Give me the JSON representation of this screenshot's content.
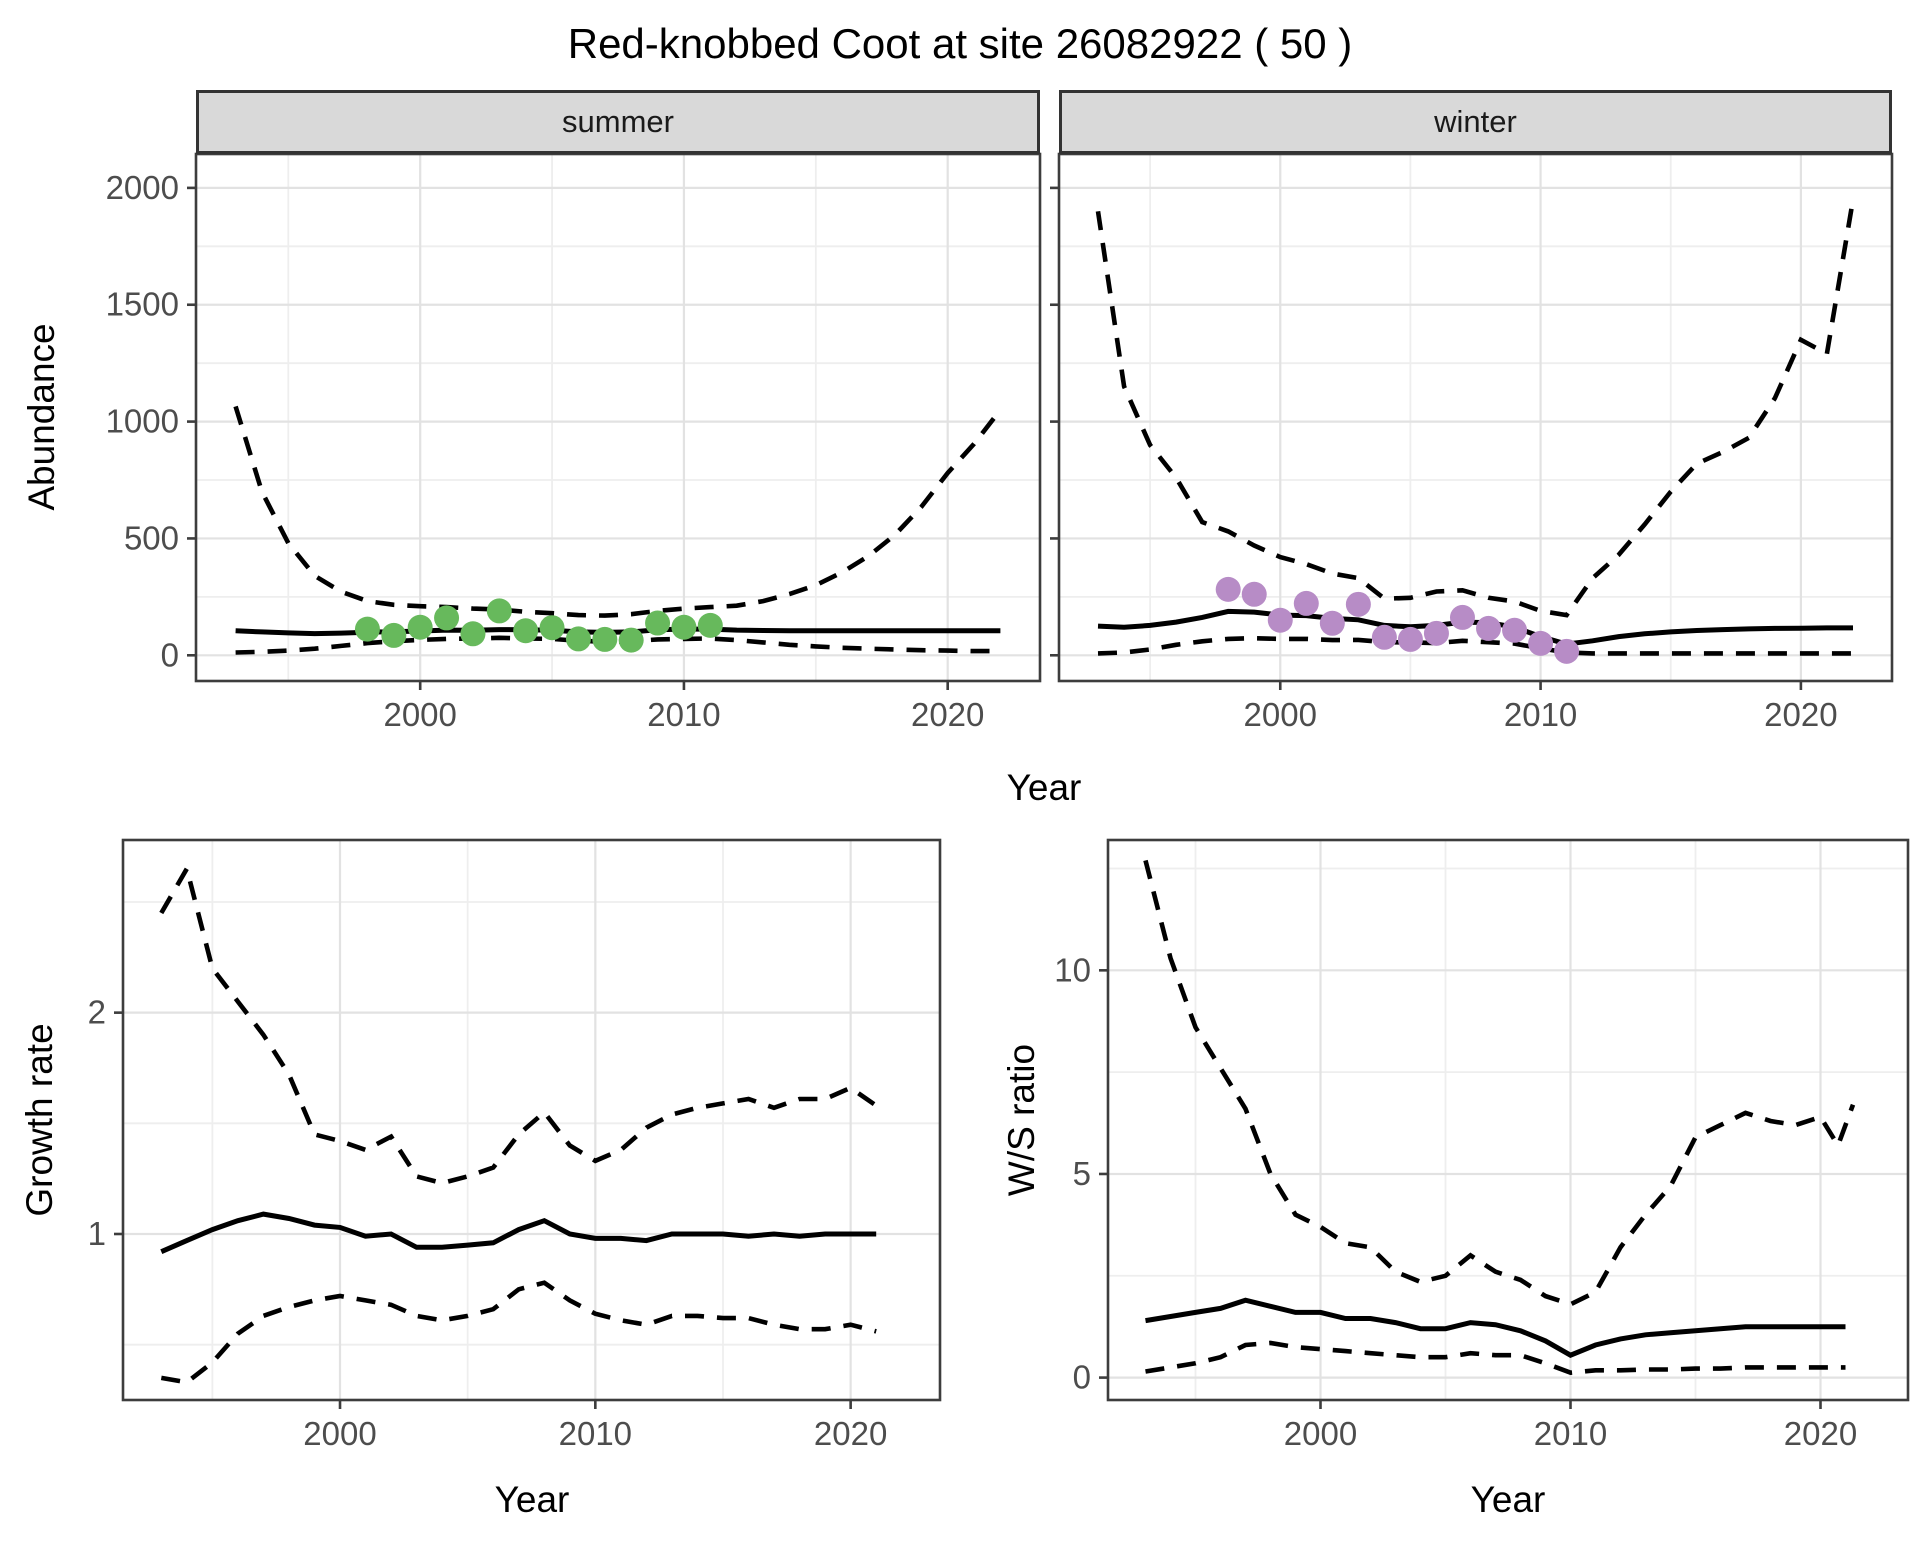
{
  "title": "Red-knobbed Coot at site 26082922 ( 50 )",
  "facets": {
    "summer": "summer",
    "winter": "winter"
  },
  "axes": {
    "abundance": "Abundance",
    "year_top": "Year",
    "growth_rate": "Growth rate",
    "ws_ratio": "W/S ratio",
    "year_growth": "Year",
    "year_ws": "Year"
  },
  "colors": {
    "summer_points": "#67b95c",
    "winter_points": "#b78cc6",
    "line": "#000000",
    "strip_bg": "#d9d9d9",
    "grid_major": "#e2e2e2",
    "grid_minor": "#eeeeee",
    "tick_label": "#4d4d4d",
    "panel_border": "#3d3d3d"
  },
  "chart_data": [
    {
      "id": "abundance-summer",
      "type": "line",
      "facet": "summer",
      "xlabel": "Year",
      "ylabel": "Abundance",
      "xlim": [
        1991.5,
        2023.5
      ],
      "ylim": [
        -110,
        2145
      ],
      "x_ticks": [
        2000,
        2010,
        2020
      ],
      "x_minor": [
        1995,
        2005,
        2015
      ],
      "y_ticks": [
        0,
        500,
        1000,
        1500,
        2000
      ],
      "y_minor": [
        250,
        750,
        1250,
        1750
      ],
      "show_y_labels": true,
      "series": [
        {
          "name": "upper_ci",
          "style": "dashed",
          "x": [
            1993,
            1994,
            1995,
            1996,
            1997,
            1998,
            1999,
            2000,
            2001,
            2002,
            2003,
            2004,
            2005,
            2006,
            2007,
            2008,
            2009,
            2010,
            2011,
            2012,
            2013,
            2014,
            2015,
            2016,
            2017,
            2018,
            2019,
            2020,
            2021,
            2022
          ],
          "y": [
            1065,
            700,
            480,
            340,
            272,
            232,
            216,
            210,
            206,
            200,
            196,
            186,
            180,
            172,
            170,
            176,
            190,
            200,
            206,
            212,
            232,
            262,
            300,
            355,
            425,
            515,
            635,
            780,
            905,
            1050
          ]
        },
        {
          "name": "lower_ci",
          "style": "dashed",
          "x": [
            1993,
            1994,
            1995,
            1996,
            1997,
            1998,
            1999,
            2000,
            2001,
            2002,
            2003,
            2004,
            2005,
            2006,
            2007,
            2008,
            2009,
            2010,
            2011,
            2012,
            2013,
            2014,
            2015,
            2016,
            2017,
            2018,
            2019,
            2020,
            2021,
            2022
          ],
          "y": [
            12,
            15,
            20,
            28,
            40,
            52,
            60,
            66,
            70,
            72,
            75,
            72,
            70,
            62,
            58,
            60,
            68,
            70,
            72,
            65,
            55,
            45,
            38,
            32,
            28,
            25,
            22,
            20,
            18,
            18
          ]
        },
        {
          "name": "median",
          "style": "solid",
          "x": [
            1993,
            1994,
            1995,
            1996,
            1997,
            1998,
            1999,
            2000,
            2001,
            2002,
            2003,
            2004,
            2005,
            2006,
            2007,
            2008,
            2009,
            2010,
            2011,
            2012,
            2013,
            2014,
            2015,
            2016,
            2017,
            2018,
            2019,
            2020,
            2021,
            2022
          ],
          "y": [
            105,
            100,
            96,
            93,
            95,
            99,
            101,
            104,
            108,
            107,
            110,
            109,
            107,
            100,
            98,
            100,
            109,
            112,
            112,
            108,
            106,
            105,
            105,
            105,
            105,
            105,
            105,
            105,
            105,
            105
          ]
        },
        {
          "name": "observed_counts",
          "style": "points",
          "color_key": "summer_points",
          "x": [
            1998,
            1999,
            2000,
            2001,
            2002,
            2003,
            2004,
            2005,
            2006,
            2007,
            2008,
            2009,
            2010,
            2011
          ],
          "y": [
            112,
            85,
            120,
            160,
            92,
            190,
            105,
            118,
            70,
            68,
            65,
            138,
            120,
            128
          ]
        }
      ]
    },
    {
      "id": "abundance-winter",
      "type": "line",
      "facet": "winter",
      "xlabel": "Year",
      "ylabel": "Abundance",
      "xlim": [
        1991.5,
        2023.5
      ],
      "ylim": [
        -110,
        2145
      ],
      "x_ticks": [
        2000,
        2010,
        2020
      ],
      "x_minor": [
        1995,
        2005,
        2015
      ],
      "y_ticks": [
        0,
        500,
        1000,
        1500,
        2000
      ],
      "y_minor": [
        250,
        750,
        1250,
        1750
      ],
      "show_y_labels": false,
      "series": [
        {
          "name": "upper_ci",
          "style": "dashed",
          "x": [
            1993,
            1994,
            1995,
            1996,
            1997,
            1998,
            1999,
            2000,
            2001,
            2002,
            2003,
            2004,
            2005,
            2006,
            2007,
            2008,
            2009,
            2010,
            2011,
            2012,
            2013,
            2014,
            2015,
            2016,
            2017,
            2018,
            2019,
            2020,
            2021,
            2022
          ],
          "y": [
            1900,
            1150,
            900,
            760,
            570,
            530,
            470,
            420,
            390,
            350,
            330,
            242,
            246,
            273,
            278,
            246,
            230,
            190,
            172,
            330,
            430,
            560,
            700,
            820,
            870,
            930,
            1100,
            1350,
            1290,
            1950
          ]
        },
        {
          "name": "lower_ci",
          "style": "dashed",
          "x": [
            1993,
            1994,
            1995,
            1996,
            1997,
            1998,
            1999,
            2000,
            2001,
            2002,
            2003,
            2004,
            2005,
            2006,
            2007,
            2008,
            2009,
            2010,
            2011,
            2012,
            2013,
            2014,
            2015,
            2016,
            2017,
            2018,
            2019,
            2020,
            2021,
            2022
          ],
          "y": [
            8,
            12,
            25,
            45,
            60,
            70,
            73,
            70,
            70,
            65,
            66,
            56,
            55,
            52,
            62,
            56,
            50,
            30,
            12,
            8,
            8,
            8,
            8,
            8,
            8,
            8,
            8,
            8,
            8,
            8
          ]
        },
        {
          "name": "median",
          "style": "solid",
          "x": [
            1993,
            1994,
            1995,
            1996,
            1997,
            1998,
            1999,
            2000,
            2001,
            2002,
            2003,
            2004,
            2005,
            2006,
            2007,
            2008,
            2009,
            2010,
            2011,
            2012,
            2013,
            2014,
            2015,
            2016,
            2017,
            2018,
            2019,
            2020,
            2021,
            2022
          ],
          "y": [
            125,
            120,
            128,
            142,
            162,
            188,
            185,
            172,
            170,
            158,
            152,
            128,
            122,
            128,
            142,
            140,
            120,
            80,
            48,
            62,
            80,
            92,
            100,
            106,
            110,
            113,
            115,
            116,
            117,
            117
          ]
        },
        {
          "name": "observed_counts",
          "style": "points",
          "color_key": "winter_points",
          "x": [
            1998,
            1999,
            2000,
            2001,
            2002,
            2003,
            2004,
            2005,
            2006,
            2007,
            2008,
            2009,
            2010,
            2011
          ],
          "y": [
            282,
            261,
            150,
            222,
            137,
            218,
            77,
            68,
            94,
            162,
            115,
            107,
            51,
            17
          ]
        }
      ]
    },
    {
      "id": "growth-rate",
      "type": "line",
      "facet": null,
      "xlabel": "Year",
      "ylabel": "Growth rate",
      "xlim": [
        1991.5,
        2023.5
      ],
      "ylim": [
        0.25,
        2.78
      ],
      "x_ticks": [
        2000,
        2010,
        2020
      ],
      "x_minor": [
        1995,
        2005,
        2015
      ],
      "y_ticks": [
        1,
        2
      ],
      "y_minor": [
        0.5,
        1.5,
        2.5
      ],
      "show_y_labels": true,
      "series": [
        {
          "name": "upper_ci",
          "style": "dashed",
          "x": [
            1993,
            1994,
            1995,
            1996,
            1997,
            1998,
            1999,
            2000,
            2001,
            2002,
            2003,
            2004,
            2005,
            2006,
            2007,
            2008,
            2009,
            2010,
            2011,
            2012,
            2013,
            2014,
            2015,
            2016,
            2017,
            2018,
            2019,
            2020,
            2021
          ],
          "y": [
            2.45,
            2.65,
            2.2,
            2.05,
            1.9,
            1.72,
            1.45,
            1.42,
            1.38,
            1.44,
            1.26,
            1.23,
            1.26,
            1.3,
            1.45,
            1.55,
            1.4,
            1.33,
            1.38,
            1.48,
            1.54,
            1.57,
            1.59,
            1.61,
            1.57,
            1.61,
            1.61,
            1.66,
            1.58
          ]
        },
        {
          "name": "lower_ci",
          "style": "dashed",
          "x": [
            1993,
            1994,
            1995,
            1996,
            1997,
            1998,
            1999,
            2000,
            2001,
            2002,
            2003,
            2004,
            2005,
            2006,
            2007,
            2008,
            2009,
            2010,
            2011,
            2012,
            2013,
            2014,
            2015,
            2016,
            2017,
            2018,
            2019,
            2020,
            2021
          ],
          "y": [
            0.35,
            0.33,
            0.42,
            0.55,
            0.63,
            0.67,
            0.7,
            0.72,
            0.7,
            0.68,
            0.63,
            0.61,
            0.63,
            0.66,
            0.75,
            0.78,
            0.7,
            0.64,
            0.61,
            0.59,
            0.63,
            0.63,
            0.62,
            0.62,
            0.59,
            0.57,
            0.57,
            0.59,
            0.56
          ]
        },
        {
          "name": "median",
          "style": "solid",
          "x": [
            1993,
            1994,
            1995,
            1996,
            1997,
            1998,
            1999,
            2000,
            2001,
            2002,
            2003,
            2004,
            2005,
            2006,
            2007,
            2008,
            2009,
            2010,
            2011,
            2012,
            2013,
            2014,
            2015,
            2016,
            2017,
            2018,
            2019,
            2020,
            2021
          ],
          "y": [
            0.92,
            0.97,
            1.02,
            1.06,
            1.09,
            1.07,
            1.04,
            1.03,
            0.99,
            1.0,
            0.94,
            0.94,
            0.95,
            0.96,
            1.02,
            1.06,
            1.0,
            0.98,
            0.98,
            0.97,
            1.0,
            1.0,
            1.0,
            0.99,
            1.0,
            0.99,
            1.0,
            1.0,
            1.0
          ]
        }
      ]
    },
    {
      "id": "ws-ratio",
      "type": "line",
      "facet": null,
      "xlabel": "Year",
      "ylabel": "W/S ratio",
      "xlim": [
        1991.5,
        2023.5
      ],
      "ylim": [
        -0.55,
        13.2
      ],
      "x_ticks": [
        2000,
        2010,
        2020
      ],
      "x_minor": [
        1995,
        2005,
        2015
      ],
      "y_ticks": [
        0,
        5,
        10
      ],
      "y_minor": [
        2.5,
        7.5,
        12.5
      ],
      "show_y_labels": true,
      "series": [
        {
          "name": "upper_ci",
          "style": "dashed",
          "x": [
            1993,
            1994,
            1995,
            1996,
            1997,
            1998,
            1999,
            2000,
            2001,
            2002,
            2003,
            2004,
            2005,
            2006,
            2007,
            2008,
            2009,
            2010,
            2011,
            2012,
            2013,
            2014,
            2015,
            2016,
            2017,
            2018,
            2019,
            2020,
            2020.7,
            2021.3
          ],
          "y": [
            12.7,
            10.3,
            8.6,
            7.6,
            6.6,
            5.0,
            4.0,
            3.7,
            3.3,
            3.2,
            2.6,
            2.35,
            2.5,
            3.0,
            2.6,
            2.4,
            2.0,
            1.8,
            2.1,
            3.2,
            4.0,
            4.7,
            5.9,
            6.2,
            6.5,
            6.3,
            6.2,
            6.4,
            5.7,
            6.7
          ]
        },
        {
          "name": "lower_ci",
          "style": "dashed",
          "x": [
            1993,
            1994,
            1995,
            1996,
            1997,
            1998,
            1999,
            2000,
            2001,
            2002,
            2003,
            2004,
            2005,
            2006,
            2007,
            2008,
            2009,
            2010,
            2011,
            2012,
            2013,
            2014,
            2015,
            2016,
            2017,
            2018,
            2019,
            2020,
            2021
          ],
          "y": [
            0.15,
            0.25,
            0.35,
            0.5,
            0.8,
            0.85,
            0.75,
            0.7,
            0.65,
            0.6,
            0.55,
            0.5,
            0.5,
            0.6,
            0.55,
            0.55,
            0.35,
            0.12,
            0.18,
            0.18,
            0.2,
            0.2,
            0.22,
            0.22,
            0.25,
            0.25,
            0.25,
            0.25,
            0.25
          ]
        },
        {
          "name": "median",
          "style": "solid",
          "x": [
            1993,
            1994,
            1995,
            1996,
            1997,
            1998,
            1999,
            2000,
            2001,
            2002,
            2003,
            2004,
            2005,
            2006,
            2007,
            2008,
            2009,
            2010,
            2011,
            2012,
            2013,
            2014,
            2015,
            2016,
            2017,
            2018,
            2019,
            2020,
            2021
          ],
          "y": [
            1.4,
            1.5,
            1.6,
            1.7,
            1.9,
            1.75,
            1.6,
            1.6,
            1.45,
            1.45,
            1.35,
            1.2,
            1.2,
            1.35,
            1.3,
            1.15,
            0.9,
            0.55,
            0.8,
            0.95,
            1.05,
            1.1,
            1.15,
            1.2,
            1.25,
            1.25,
            1.25,
            1.25,
            1.25
          ]
        }
      ]
    }
  ]
}
